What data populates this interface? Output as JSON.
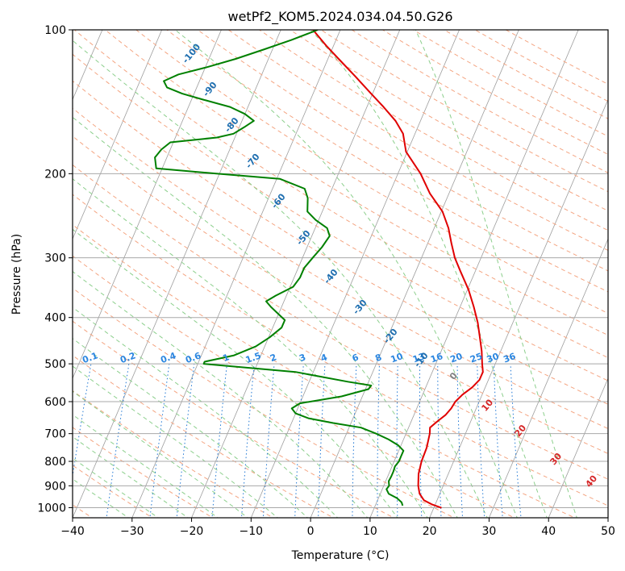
{
  "chart_data": {
    "type": "line",
    "chart_kind": "skew-T log-p",
    "title": "wetPf2_KOM5.2024.034.04.50.G26",
    "xlabel": "Temperature (°C)",
    "ylabel": "Pressure (hPa)",
    "xlim": [
      -40,
      50
    ],
    "ylim": [
      1050,
      100
    ],
    "y_scale": "log",
    "x_ticks": [
      "−40",
      "−30",
      "−20",
      "−10",
      "0",
      "10",
      "20",
      "30",
      "40",
      "50"
    ],
    "y_ticks": [
      "100",
      "200",
      "300",
      "400",
      "500",
      "600",
      "700",
      "800",
      "900",
      "1000"
    ],
    "grid": true,
    "background_lines": {
      "isotherms": {
        "color": "#888888",
        "style": "solid"
      },
      "dry_adiabats": {
        "color": "#f4a582",
        "style": "dashed"
      },
      "moist_adiabats": {
        "color": "#8ccf8c",
        "style": "dashed"
      },
      "mixing_ratio": {
        "color": "#1f77d4",
        "style": "dotted"
      }
    },
    "mixing_ratio_labels": [
      "0.1",
      "0.2",
      "0.4",
      "0.6",
      "1",
      "1.5",
      "2",
      "3",
      "4",
      "6",
      "8",
      "10",
      "13",
      "16",
      "20",
      "25",
      "30",
      "36"
    ],
    "wetbulb_zero_label_blue": [
      "-100",
      "-90",
      "-80",
      "-70",
      "-60",
      "-50",
      "-40",
      "-30",
      "-20",
      "-10"
    ],
    "wetbulb_zero_label_gray": [
      "0"
    ],
    "wetbulb_zero_label_red": [
      "10",
      "20",
      "30",
      "40"
    ],
    "series": [
      {
        "name": "Temperature",
        "color": "#e00000",
        "points": [
          [
            1001,
            21.3
          ],
          [
            985,
            19.5
          ],
          [
            965,
            17.8
          ],
          [
            935,
            16.6
          ],
          [
            900,
            15.8
          ],
          [
            850,
            15.0
          ],
          [
            800,
            14.6
          ],
          [
            750,
            14.5
          ],
          [
            700,
            14.0
          ],
          [
            680,
            13.6
          ],
          [
            660,
            14.4
          ],
          [
            640,
            15.3
          ],
          [
            620,
            15.8
          ],
          [
            600,
            16.0
          ],
          [
            580,
            16.7
          ],
          [
            560,
            17.8
          ],
          [
            540,
            18.5
          ],
          [
            520,
            18.5
          ],
          [
            500,
            17.8
          ],
          [
            470,
            16.8
          ],
          [
            440,
            15.5
          ],
          [
            410,
            14.1
          ],
          [
            380,
            12.3
          ],
          [
            350,
            10.2
          ],
          [
            320,
            7.5
          ],
          [
            300,
            5.6
          ],
          [
            280,
            4.0
          ],
          [
            260,
            2.4
          ],
          [
            240,
            0.2
          ],
          [
            220,
            -3.2
          ],
          [
            200,
            -6.2
          ],
          [
            180,
            -10.2
          ],
          [
            165,
            -12.0
          ],
          [
            155,
            -14.2
          ],
          [
            145,
            -17.2
          ],
          [
            135,
            -20.6
          ],
          [
            125,
            -24.2
          ],
          [
            115,
            -28.2
          ],
          [
            108,
            -31.2
          ],
          [
            100,
            -34.6
          ]
        ]
      },
      {
        "name": "Dewpoint",
        "color": "#008000",
        "points": [
          [
            990,
            14.6
          ],
          [
            975,
            14.2
          ],
          [
            955,
            13.1
          ],
          [
            935,
            11.4
          ],
          [
            915,
            10.7
          ],
          [
            900,
            10.9
          ],
          [
            880,
            10.5
          ],
          [
            860,
            10.6
          ],
          [
            840,
            10.6
          ],
          [
            820,
            10.5
          ],
          [
            800,
            10.8
          ],
          [
            780,
            10.8
          ],
          [
            760,
            10.8
          ],
          [
            740,
            9.5
          ],
          [
            720,
            7.5
          ],
          [
            700,
            5.0
          ],
          [
            680,
            2.0
          ],
          [
            665,
            -3.0
          ],
          [
            650,
            -7.5
          ],
          [
            635,
            -10.0
          ],
          [
            620,
            -11.0
          ],
          [
            605,
            -10.0
          ],
          [
            585,
            -3.5
          ],
          [
            565,
            0.5
          ],
          [
            555,
            0.7
          ],
          [
            545,
            -3.5
          ],
          [
            520,
            -13.0
          ],
          [
            500,
            -29.0
          ],
          [
            495,
            -29.0
          ],
          [
            480,
            -24.5
          ],
          [
            460,
            -21.5
          ],
          [
            440,
            -19.8
          ],
          [
            420,
            -18.5
          ],
          [
            405,
            -18.5
          ],
          [
            395,
            -19.8
          ],
          [
            380,
            -21.8
          ],
          [
            370,
            -23.0
          ],
          [
            360,
            -21.8
          ],
          [
            345,
            -19.5
          ],
          [
            330,
            -19.0
          ],
          [
            315,
            -19.0
          ],
          [
            300,
            -18.3
          ],
          [
            285,
            -17.5
          ],
          [
            270,
            -17.0
          ],
          [
            260,
            -18.0
          ],
          [
            250,
            -20.5
          ],
          [
            240,
            -22.5
          ],
          [
            225,
            -23.4
          ],
          [
            215,
            -24.6
          ],
          [
            205,
            -29.5
          ],
          [
            200,
            -40.5
          ],
          [
            195,
            -51.0
          ],
          [
            185,
            -52.0
          ],
          [
            178,
            -51.5
          ],
          [
            172,
            -50.5
          ],
          [
            168,
            -43.0
          ],
          [
            165,
            -40.5
          ],
          [
            160,
            -39.2
          ],
          [
            155,
            -38.0
          ],
          [
            150,
            -40.0
          ],
          [
            145,
            -43.0
          ],
          [
            140,
            -48.0
          ],
          [
            136,
            -52.0
          ],
          [
            132,
            -55.0
          ],
          [
            128,
            -56.0
          ],
          [
            124,
            -54.0
          ],
          [
            120,
            -50.0
          ],
          [
            115,
            -45.5
          ],
          [
            110,
            -41.5
          ],
          [
            105,
            -37.5
          ],
          [
            100,
            -33.8
          ]
        ]
      }
    ]
  }
}
